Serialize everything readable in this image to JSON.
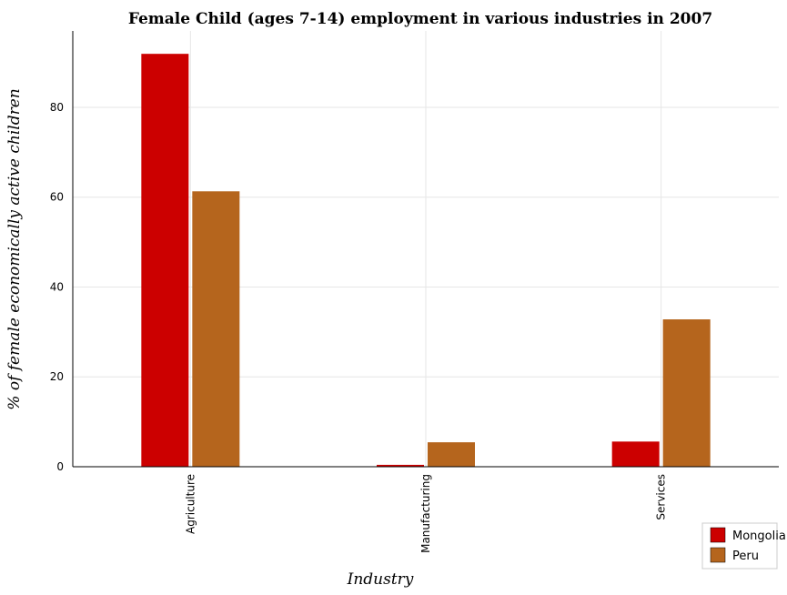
{
  "chart_data": {
    "type": "bar",
    "title": "Female Child (ages 7-14) employment in various industries in 2007",
    "xlabel": "Industry",
    "ylabel": "% of female economically active children",
    "categories": [
      "Agriculture",
      "Manufacturing",
      "Services"
    ],
    "series": [
      {
        "name": "Mongolia",
        "color": "#cc0000",
        "values": [
          91.9,
          0.42,
          5.6
        ]
      },
      {
        "name": "Peru",
        "color": "#b5651d",
        "values": [
          61.3,
          5.44,
          32.8
        ]
      }
    ],
    "ylim": [
      0,
      97
    ],
    "yticks": [
      0,
      20,
      40,
      60,
      80
    ],
    "grid": true,
    "legend_position": "bottom-right"
  }
}
